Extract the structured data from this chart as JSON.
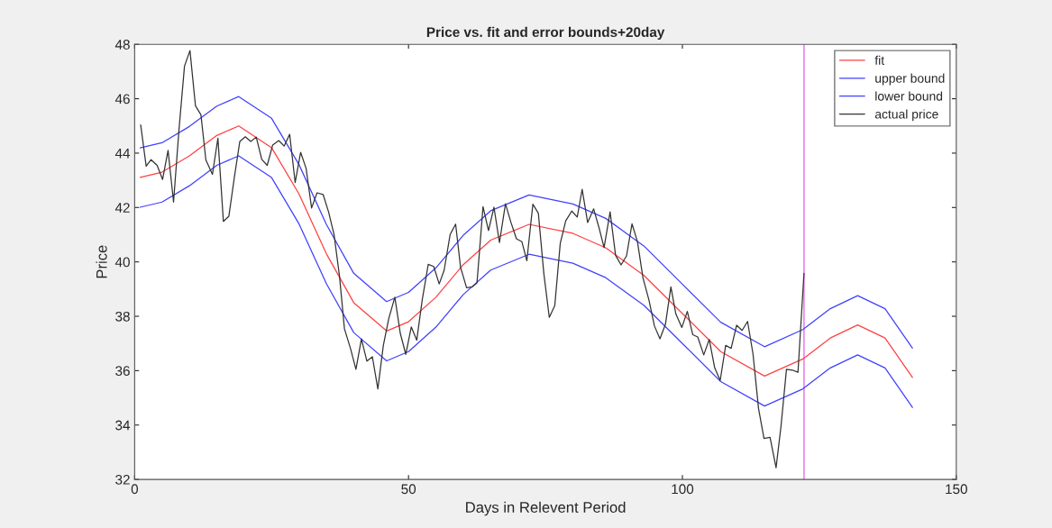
{
  "chart_data": {
    "type": "line",
    "title": "Price vs. fit and error bounds+20day",
    "xlabel": "Days in Relevent Period",
    "ylabel": "Price",
    "xlim": [
      0,
      150
    ],
    "xticks": [
      0,
      50,
      100,
      150
    ],
    "ylim": [
      32,
      48
    ],
    "yticks": [
      32,
      34,
      36,
      38,
      40,
      42,
      44,
      46,
      48
    ],
    "grid": false,
    "legend": "top right",
    "ref_lines": [
      {
        "axis": "x",
        "value": 122.2,
        "color": "#ee82ee"
      }
    ],
    "series": [
      {
        "name": "fit",
        "color": "#ff4040",
        "x": [
          1,
          5,
          10,
          15,
          19,
          25,
          30,
          35,
          40,
          46,
          50,
          55,
          60,
          65,
          72,
          80,
          86,
          93,
          100,
          107,
          115,
          122,
          127,
          132,
          137,
          142
        ],
        "values": [
          43.11,
          43.3,
          43.9,
          44.65,
          45.0,
          44.2,
          42.5,
          40.3,
          38.5,
          37.46,
          37.8,
          38.7,
          39.9,
          40.8,
          41.38,
          41.05,
          40.52,
          39.5,
          38.1,
          36.7,
          35.8,
          36.43,
          37.2,
          37.68,
          37.2,
          35.75
        ]
      },
      {
        "name": "upper bound",
        "color": "#4040ff",
        "x": [
          1,
          5,
          10,
          15,
          19,
          25,
          30,
          35,
          40,
          46,
          50,
          55,
          60,
          65,
          72,
          80,
          86,
          93,
          100,
          107,
          115,
          122,
          127,
          132,
          137,
          142
        ],
        "values": [
          44.19,
          44.38,
          44.98,
          45.73,
          46.08,
          45.28,
          43.58,
          41.38,
          39.58,
          38.54,
          38.88,
          39.78,
          40.98,
          41.88,
          42.46,
          42.13,
          41.6,
          40.58,
          39.18,
          37.78,
          36.88,
          37.51,
          38.28,
          38.76,
          38.28,
          36.83
        ]
      },
      {
        "name": "lower bound",
        "color": "#4040ff",
        "x": [
          1,
          5,
          10,
          15,
          19,
          25,
          30,
          35,
          40,
          46,
          50,
          55,
          60,
          65,
          72,
          80,
          86,
          93,
          100,
          107,
          115,
          122,
          127,
          132,
          137,
          142
        ],
        "values": [
          42.01,
          42.2,
          42.8,
          43.55,
          43.9,
          43.1,
          41.4,
          39.2,
          37.4,
          36.36,
          36.7,
          37.6,
          38.8,
          39.7,
          40.28,
          39.95,
          39.42,
          38.4,
          37.0,
          35.6,
          34.7,
          35.33,
          36.1,
          36.58,
          36.1,
          34.65
        ]
      },
      {
        "name": "actual price",
        "color": "#333333",
        "x": [
          1.1,
          2.1,
          3.0,
          4.1,
          5.1,
          6.1,
          7.1,
          8.1,
          9.1,
          10.1,
          11.1,
          12.1,
          13.0,
          14.2,
          15.2,
          16.2,
          17.2,
          18.2,
          19.2,
          20.2,
          21.2,
          22.2,
          23.2,
          24.2,
          25.2,
          26.3,
          27.3,
          28.3,
          29.3,
          30.3,
          31.3,
          32.3,
          33.3,
          34.4,
          35.4,
          36.4,
          37.4,
          38.3,
          39.4,
          40.4,
          41.4,
          42.4,
          43.4,
          44.4,
          45.4,
          46.4,
          47.5,
          48.5,
          49.5,
          50.5,
          51.5,
          52.5,
          53.6,
          54.6,
          55.6,
          56.5,
          57.6,
          58.6,
          59.5,
          60.6,
          61.6,
          62.5,
          63.6,
          64.6,
          65.6,
          66.6,
          67.7,
          68.7,
          69.7,
          70.7,
          71.6,
          72.7,
          73.7,
          74.7,
          75.7,
          76.7,
          77.7,
          78.7,
          79.8,
          80.8,
          81.7,
          82.7,
          83.8,
          84.8,
          85.7,
          86.8,
          87.8,
          88.8,
          89.8,
          90.8,
          91.8,
          92.8,
          93.9,
          94.9,
          95.9,
          96.9,
          97.9,
          98.8,
          99.9,
          100.9,
          101.9,
          102.8,
          103.9,
          104.9,
          105.9,
          106.9,
          107.9,
          108.9,
          109.9,
          110.9,
          111.9,
          112.9,
          113.9,
          114.9,
          116.0,
          117.1,
          118.0,
          119.0,
          120.1,
          121.1,
          122.2
        ],
        "values": [
          45.04,
          43.52,
          43.76,
          43.55,
          43.03,
          44.1,
          42.2,
          44.88,
          47.2,
          47.77,
          45.74,
          45.41,
          43.75,
          43.22,
          44.55,
          41.49,
          41.68,
          43.11,
          44.43,
          44.6,
          44.43,
          44.59,
          43.77,
          43.55,
          44.3,
          44.46,
          44.26,
          44.69,
          42.92,
          44.03,
          43.44,
          41.98,
          42.54,
          42.48,
          41.84,
          41.01,
          39.47,
          37.54,
          36.82,
          36.05,
          37.17,
          36.35,
          36.51,
          35.33,
          36.93,
          37.92,
          38.7,
          37.37,
          36.6,
          37.61,
          37.12,
          38.6,
          39.91,
          39.83,
          39.19,
          39.69,
          41.01,
          41.39,
          39.8,
          39.05,
          39.08,
          39.23,
          42.03,
          41.15,
          42.01,
          40.71,
          42.14,
          41.45,
          40.85,
          40.74,
          40.04,
          42.12,
          41.79,
          39.58,
          37.96,
          38.39,
          40.68,
          41.51,
          41.87,
          41.65,
          42.67,
          41.45,
          41.95,
          41.24,
          40.52,
          41.84,
          40.24,
          39.89,
          40.22,
          41.4,
          40.74,
          39.41,
          38.59,
          37.64,
          37.17,
          37.7,
          39.08,
          38.09,
          37.59,
          38.18,
          37.32,
          37.24,
          36.58,
          37.15,
          36.1,
          35.64,
          36.93,
          36.82,
          37.67,
          37.48,
          37.81,
          36.6,
          34.61,
          33.51,
          33.55,
          32.43,
          33.95,
          36.05,
          36.02,
          35.94,
          39.58
        ]
      }
    ]
  }
}
